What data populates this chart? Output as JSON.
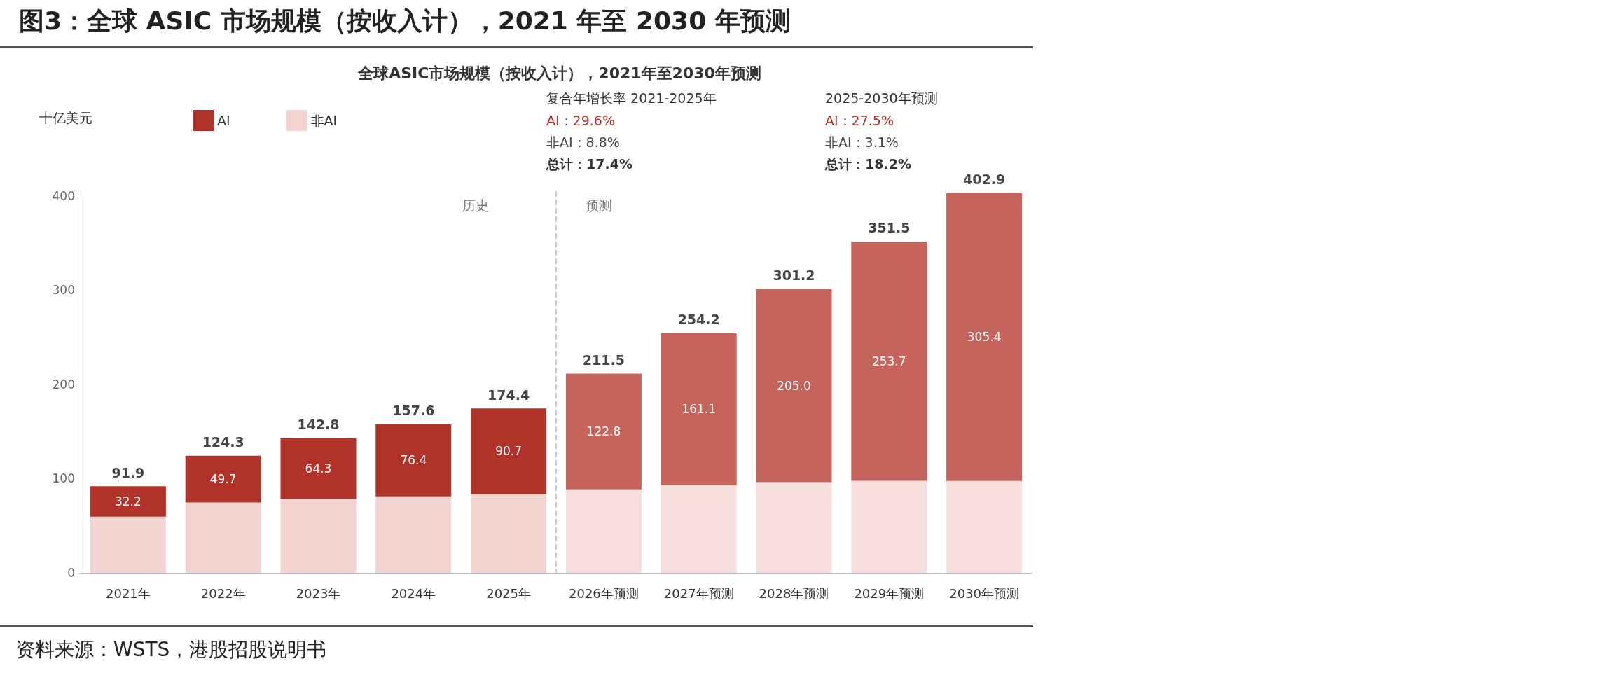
{
  "chart_data": {
    "type": "bar",
    "title": "图3：全球 ASIC 市场规模（按收入计），2021 年至 2030 年预测",
    "subtitle": "全球ASIC市场规模（按收入计），2021年至2030年预测",
    "ylabel": "十亿美元",
    "categories": [
      "2021年",
      "2022年",
      "2023年",
      "2024年",
      "2025年",
      "2026年预测",
      "2027年预测",
      "2028年预测",
      "2029年预测",
      "2030年预测"
    ],
    "stacked": true,
    "series": [
      {
        "name": "非AI",
        "color": "#f2d3d0",
        "colors": [
          "#f2d3d0",
          "#f2d3d0",
          "#f2d3d0",
          "#f2d3d0",
          "#f2d3d0",
          "#f6dfdc",
          "#f6dfdc",
          "#f6dfdc",
          "#f6dfdc",
          "#f6dfdc"
        ],
        "values": [
          59.7,
          74.6,
          78.5,
          81.2,
          83.7,
          88.7,
          93.1,
          96.2,
          97.8,
          97.5
        ]
      },
      {
        "name": "AI",
        "color": "#b03228",
        "colors": [
          "#b03228",
          "#b03228",
          "#b03228",
          "#b03228",
          "#b03228",
          "#c4645d",
          "#c4645d",
          "#c4645d",
          "#c4645d",
          "#c4645d"
        ],
        "values": [
          32.2,
          49.7,
          64.3,
          76.4,
          90.7,
          122.8,
          161.1,
          205.0,
          253.7,
          305.4
        ],
        "value_labels": [
          "32.2",
          "49.7",
          "64.3",
          "76.4",
          "90.7",
          "122.8",
          "161.1",
          "205.0",
          "253.7",
          "305.4"
        ]
      }
    ],
    "totals": [
      "91.9",
      "124.3",
      "142.8",
      "157.6",
      "174.4",
      "211.5",
      "254.2",
      "301.2",
      "351.5",
      "402.9"
    ],
    "ylim": [
      0,
      405
    ],
    "yticks": [
      0,
      100,
      200,
      300,
      400
    ],
    "grid": false,
    "legend": "top left",
    "annotations": [
      "复合年增长率 2021-2025年",
      "AI：29.6%",
      "非AI：8.8%",
      "总计：17.4%",
      "2025-2030年预测",
      "AI：27.5%",
      "非AI：3.1%",
      "总计：18.2%",
      "历史",
      "预测",
      "资料来源：WSTS，港股招股说明书"
    ]
  }
}
